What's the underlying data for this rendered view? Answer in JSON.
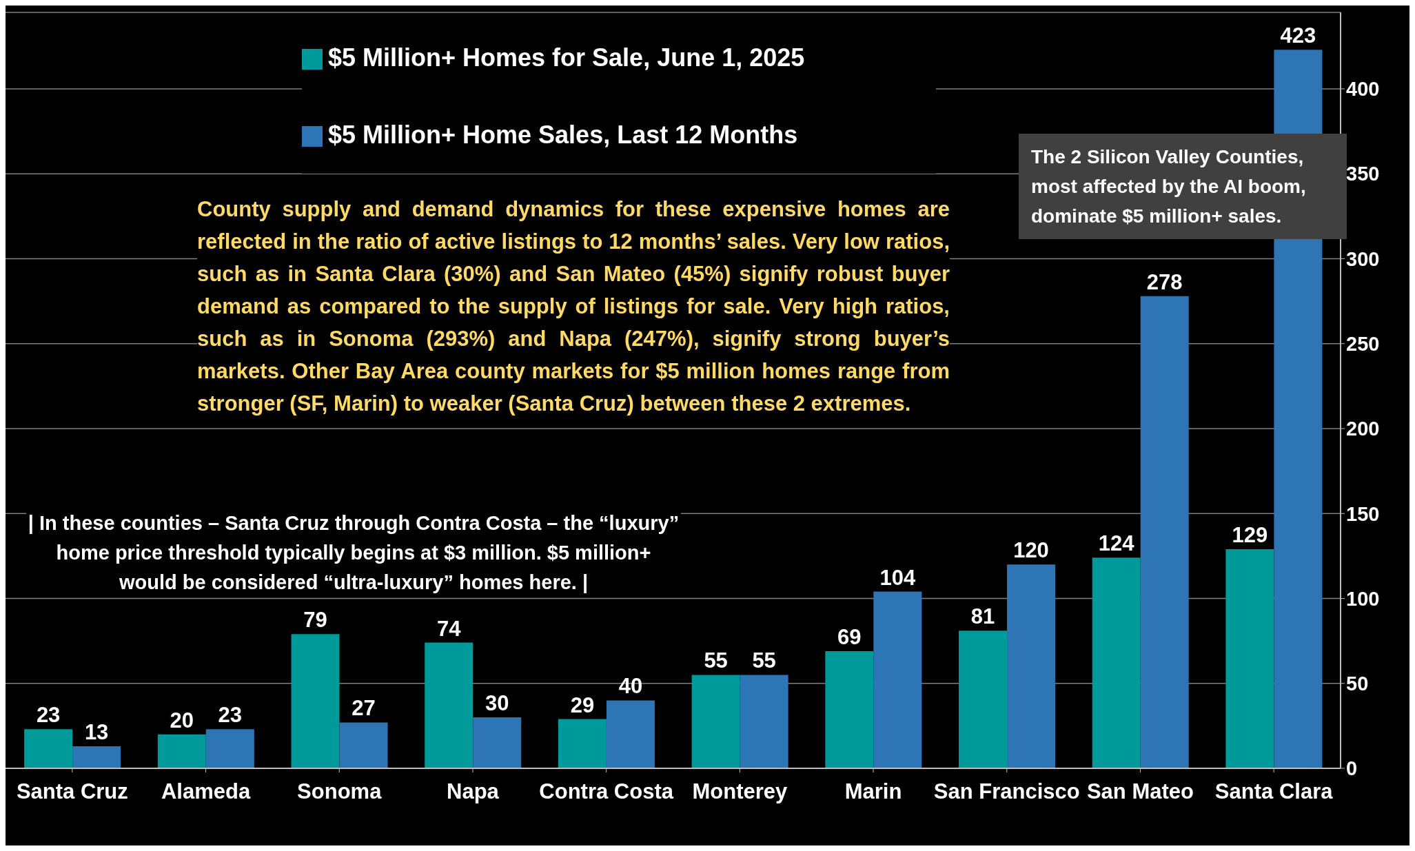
{
  "chart_data": {
    "type": "bar",
    "categories": [
      "Santa Cruz",
      "Alameda",
      "Sonoma",
      "Napa",
      "Contra Costa",
      "Monterey",
      "Marin",
      "San Francisco",
      "San Mateo",
      "Santa Clara"
    ],
    "series": [
      {
        "name": "$5 Million+ Homes for Sale, June 1, 2025",
        "color": "#009a9a",
        "values": [
          23,
          20,
          79,
          74,
          29,
          55,
          69,
          81,
          124,
          129
        ]
      },
      {
        "name": "$5 Million+ Home Sales, Last 12 Months",
        "color": "#2e75b6",
        "values": [
          13,
          23,
          27,
          30,
          40,
          55,
          104,
          120,
          278,
          423
        ]
      }
    ],
    "ylim": [
      0,
      445
    ],
    "yticks": [
      0,
      50,
      100,
      150,
      200,
      250,
      300,
      350,
      400
    ],
    "grid": "y",
    "legend": "top",
    "data_labels": true,
    "annotations": [
      "County supply and demand dynamics for these expensive homes are reflected in the ratio of active listings to 12 months’ sales. Very low ratios, such as in Santa Clara (30%) and San Mateo (45%) signify robust buyer demand as compared to the supply of listings for sale. Very high ratios, such as in Sonoma (293%) and Napa (247%), signify strong buyer’s markets. Other Bay Area county markets for $5 million homes range from stronger (SF, Marin) to weaker (Santa Cruz) between these 2 extremes.",
      "| In these counties – Santa Cruz through Contra Costa – the “luxury” home price threshold typically begins at $3 million. $5 million+ would be considered “ultra-luxury” homes here. |",
      "The 2 Silicon Valley Counties, most affected by the AI boom, dominate $5 million+ sales."
    ]
  }
}
